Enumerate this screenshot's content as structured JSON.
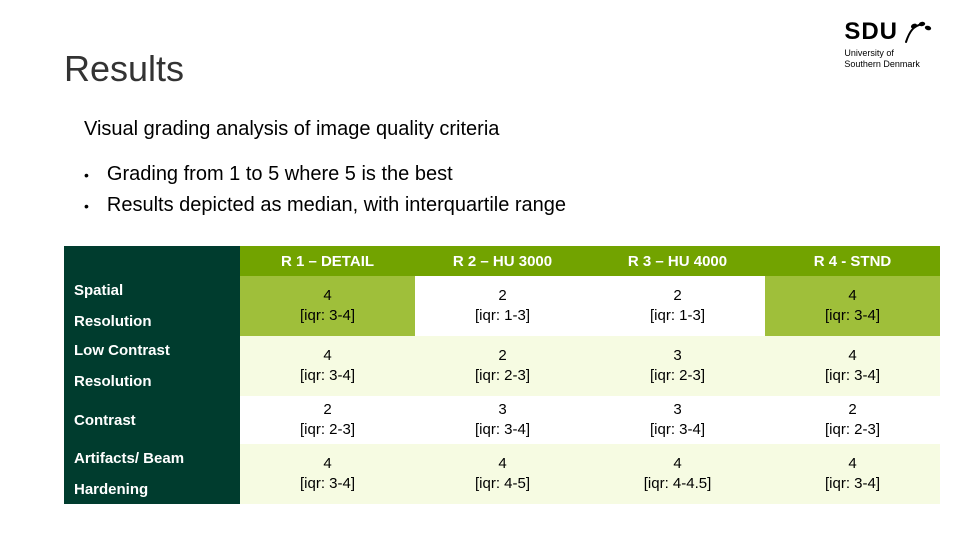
{
  "colors": {
    "header_bg": "#72a300",
    "header_text": "#ffffff",
    "label_col_bg": "#003c2e",
    "label_col_text": "#ffffff",
    "row_shade_olive": "#9fbf3a",
    "row_shade_white": "#ffffff",
    "row_shade_cream": "#f6fbe2",
    "title_color": "#333333",
    "text_color": "#000000"
  },
  "logo": {
    "text": "SDU",
    "subline1": "University of",
    "subline2": "Southern Denmark"
  },
  "title": "Results",
  "subtitle": "Visual grading analysis of image quality criteria",
  "bullets": [
    "Grading from 1 to 5 where 5 is the best",
    "Results depicted as median, with interquartile range"
  ],
  "table": {
    "columns": [
      "R 1 – DETAIL",
      "R 2 – HU 3000",
      "R 3 – HU 4000",
      "R 4 - STND"
    ],
    "rows": [
      {
        "label_lines": [
          "Spatial",
          "Resolution"
        ],
        "cells": [
          {
            "median": "4",
            "iqr": "[iqr: 3-4]"
          },
          {
            "median": "2",
            "iqr": "[iqr: 1-3]"
          },
          {
            "median": "2",
            "iqr": "[iqr: 1-3]"
          },
          {
            "median": "4",
            "iqr": "[iqr: 3-4]"
          }
        ],
        "shades": [
          "olive",
          "white",
          "white",
          "olive"
        ]
      },
      {
        "label_lines": [
          "Low Contrast",
          "Resolution"
        ],
        "cells": [
          {
            "median": "4",
            "iqr": "[iqr: 3-4]"
          },
          {
            "median": "2",
            "iqr": "[iqr: 2-3]"
          },
          {
            "median": "3",
            "iqr": "[iqr: 2-3]"
          },
          {
            "median": "4",
            "iqr": "[iqr: 3-4]"
          }
        ],
        "shades": [
          "cream",
          "cream",
          "cream",
          "cream"
        ]
      },
      {
        "label_lines": [
          "Contrast"
        ],
        "cells": [
          {
            "median": "2",
            "iqr": "[iqr: 2-3]"
          },
          {
            "median": "3",
            "iqr": "[iqr: 3-4]"
          },
          {
            "median": "3",
            "iqr": "[iqr: 3-4]"
          },
          {
            "median": "2",
            "iqr": "[iqr: 2-3]"
          }
        ],
        "shades": [
          "white",
          "white",
          "white",
          "white"
        ]
      },
      {
        "label_lines": [
          "Artifacts/ Beam",
          "Hardening"
        ],
        "cells": [
          {
            "median": "4",
            "iqr": "[iqr: 3-4]"
          },
          {
            "median": "4",
            "iqr": "[iqr: 4-5]"
          },
          {
            "median": "4",
            "iqr": "[iqr: 4-4.5]"
          },
          {
            "median": "4",
            "iqr": "[iqr: 3-4]"
          }
        ],
        "shades": [
          "cream",
          "cream",
          "cream",
          "cream"
        ]
      }
    ]
  }
}
